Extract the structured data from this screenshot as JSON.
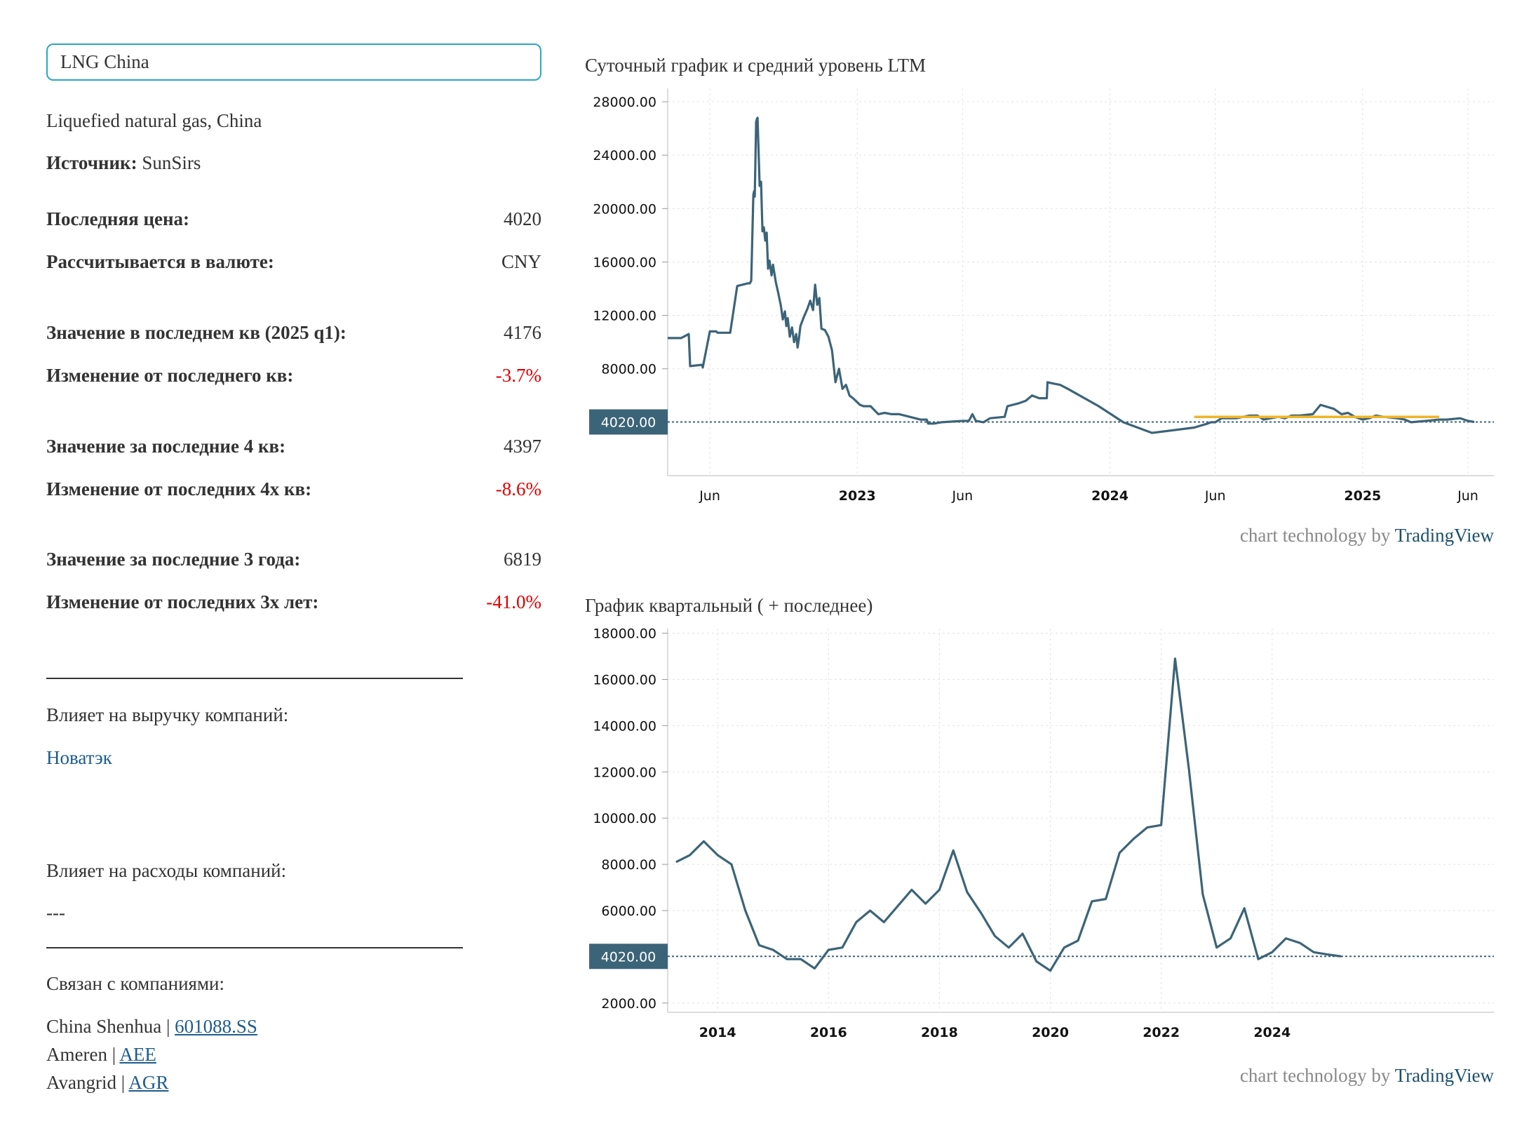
{
  "search": {
    "value": "LNG China"
  },
  "info": {
    "description": "Liquefied natural gas, China",
    "source_label": "Источник:",
    "source_value": "SunSirs"
  },
  "stats": [
    {
      "label": "Последняя цена:",
      "value": "4020",
      "negative": false
    },
    {
      "label": "Рассчитывается в валюте:",
      "value": "CNY",
      "negative": false
    },
    {
      "label": "Значение в последнем кв (2025 q1):",
      "value": "4176",
      "negative": false
    },
    {
      "label": "Изменение от последнего кв:",
      "value": "-3.7%",
      "negative": true
    },
    {
      "label": "Значение за последние 4 кв:",
      "value": "4397",
      "negative": false
    },
    {
      "label": "Изменение от последних 4х кв:",
      "value": "-8.6%",
      "negative": true
    },
    {
      "label": "Значение за последние 3 года:",
      "value": "6819",
      "negative": false
    },
    {
      "label": "Изменение от последних 3х лет:",
      "value": "-41.0%",
      "negative": true
    }
  ],
  "revenue": {
    "heading": "Влияет на выручку компаний:",
    "company": "Новатэк"
  },
  "expenses": {
    "heading": "Влияет на расходы компаний:",
    "value": "---"
  },
  "related": {
    "heading": "Связан с компаниями:",
    "companies": [
      {
        "name": "China Shenhua",
        "sep": " | ",
        "ticker": "601088.SS"
      },
      {
        "name": "Ameren",
        "sep": " | ",
        "ticker": "AEE"
      },
      {
        "name": "Avangrid",
        "sep": " | ",
        "ticker": "AGR"
      }
    ]
  },
  "credit": {
    "prefix": "chart technology by ",
    "brand": "TradingView"
  },
  "colors": {
    "line": "#3c6478",
    "ltm": "#f0b429",
    "badge": "#3c6478",
    "negative": "#e00000",
    "link": "#1d5c8c",
    "grid": "#e2e2e2"
  },
  "chart_data": [
    {
      "type": "line",
      "title": "Суточный график и средний уровень LTM",
      "ylim": [
        0,
        29000
      ],
      "y_ticks": [
        "28000.00",
        "24000.00",
        "20000.00",
        "16000.00",
        "12000.00",
        "8000.00",
        "4020.00"
      ],
      "x_ticks": [
        {
          "label": "Jun",
          "date": "2022-06",
          "bold": false
        },
        {
          "label": "2023",
          "date": "2023-01",
          "bold": true
        },
        {
          "label": "Jun",
          "date": "2023-06",
          "bold": false
        },
        {
          "label": "2024",
          "date": "2024-01",
          "bold": true
        },
        {
          "label": "Jun",
          "date": "2024-06",
          "bold": false
        },
        {
          "label": "2025",
          "date": "2025-01",
          "bold": true
        },
        {
          "label": "Jun",
          "date": "2025-06",
          "bold": false
        }
      ],
      "last_value": 4020,
      "grid": true,
      "series": [
        {
          "x": [
            "2022-04-01",
            "2022-04-20",
            "2022-05-01",
            "2022-05-03",
            "2022-05-20",
            "2022-05-21",
            "2022-06-01",
            "2022-06-10",
            "2022-06-12",
            "2022-06-30",
            "2022-07-10",
            "2022-07-25",
            "2022-07-26",
            "2022-07-28",
            "2022-07-29",
            "2022-07-30",
            "2022-08-03",
            "2022-08-04",
            "2022-08-05",
            "2022-08-07",
            "2022-08-08",
            "2022-08-09",
            "2022-08-12",
            "2022-08-14",
            "2022-08-16",
            "2022-08-18",
            "2022-08-20",
            "2022-08-22",
            "2022-08-24",
            "2022-08-26",
            "2022-08-29",
            "2022-09-01",
            "2022-09-05",
            "2022-09-08",
            "2022-09-12",
            "2022-09-15",
            "2022-09-18",
            "2022-09-20",
            "2022-09-22",
            "2022-09-25",
            "2022-09-28",
            "2022-10-01",
            "2022-10-04",
            "2022-10-06",
            "2022-10-08",
            "2022-10-10",
            "2022-10-15",
            "2022-10-20",
            "2022-10-24",
            "2022-10-28",
            "2022-11-01",
            "2022-11-04",
            "2022-11-07",
            "2022-11-10",
            "2022-11-15",
            "2022-11-20",
            "2022-11-25",
            "2022-11-30",
            "2022-12-05",
            "2022-12-10",
            "2022-12-15",
            "2022-12-20",
            "2022-12-25",
            "2022-12-31",
            "2023-01-05",
            "2023-01-10",
            "2023-01-20",
            "2023-02-01",
            "2023-02-10",
            "2023-02-20",
            "2023-03-01",
            "2023-04-01",
            "2023-04-10",
            "2023-04-12",
            "2023-04-20",
            "2023-05-01",
            "2023-06-01",
            "2023-06-10",
            "2023-06-15",
            "2023-06-20",
            "2023-07-01",
            "2023-07-10",
            "2023-08-01",
            "2023-08-05",
            "2023-08-20",
            "2023-09-01",
            "2023-09-10",
            "2023-09-20",
            "2023-10-01",
            "2023-10-02",
            "2023-10-10",
            "2023-10-20",
            "2023-11-01",
            "2023-12-15",
            "2024-01-20",
            "2024-03-01",
            "2024-05-01",
            "2024-05-20",
            "2024-05-25",
            "2024-06-01",
            "2024-06-10",
            "2024-07-01",
            "2024-07-20",
            "2024-08-01",
            "2024-08-10",
            "2024-08-20",
            "2024-09-01",
            "2024-09-10",
            "2024-09-20",
            "2024-10-01",
            "2024-10-20",
            "2024-11-01",
            "2024-11-20",
            "2024-12-01",
            "2024-12-10",
            "2024-12-20",
            "2025-01-01",
            "2025-01-10",
            "2025-01-20",
            "2025-02-01",
            "2025-02-20",
            "2025-03-01",
            "2025-03-10",
            "2025-04-01",
            "2025-04-20",
            "2025-05-01",
            "2025-05-20",
            "2025-06-01",
            "2025-06-10"
          ],
          "y": [
            10300,
            10300,
            10600,
            8200,
            8300,
            8100,
            10800,
            10800,
            10700,
            10700,
            14200,
            14400,
            14400,
            14400,
            14500,
            14600,
            21000,
            21300,
            20900,
            26500,
            26700,
            26800,
            21700,
            22000,
            18300,
            18600,
            17600,
            18200,
            15500,
            16100,
            15000,
            15800,
            14500,
            13800,
            12800,
            11700,
            12300,
            11200,
            11800,
            10400,
            11100,
            10000,
            10600,
            9600,
            10300,
            11200,
            11900,
            12500,
            13100,
            12400,
            14300,
            12800,
            13300,
            11000,
            10900,
            10400,
            9400,
            7000,
            8000,
            6500,
            6800,
            6000,
            5800,
            5500,
            5300,
            5200,
            5200,
            4600,
            4700,
            4600,
            4600,
            4200,
            4200,
            3900,
            3900,
            4000,
            4100,
            4100,
            4600,
            4100,
            4000,
            4300,
            4400,
            5200,
            5400,
            5600,
            6000,
            5800,
            5800,
            7000,
            6900,
            6800,
            6500,
            5200,
            4000,
            3200,
            3600,
            3900,
            4000,
            4000,
            4300,
            4300,
            4500,
            4500,
            4200,
            4300,
            4400,
            4300,
            4500,
            4500,
            4600,
            5300,
            5000,
            4600,
            4700,
            4400,
            4200,
            4300,
            4500,
            4400,
            4300,
            4200,
            4000,
            4100,
            4200,
            4200,
            4300,
            4100,
            4020
          ]
        }
      ],
      "ltm": {
        "x": [
          "2024-05-01",
          "2025-04-20"
        ],
        "y": [
          4397,
          4397
        ]
      }
    },
    {
      "type": "line",
      "title": "График квартальный ( + последнее)",
      "ylim": [
        1600,
        18200
      ],
      "y_ticks": [
        "18000.00",
        "16000.00",
        "14000.00",
        "12000.00",
        "10000.00",
        "8000.00",
        "6000.00",
        "4020.00",
        "2000.00"
      ],
      "x_ticks": [
        "2014",
        "2016",
        "2018",
        "2020",
        "2022",
        "2024"
      ],
      "last_value": 4020,
      "grid": true,
      "series": [
        {
          "x": [
            2013.25,
            2013.5,
            2013.75,
            2014,
            2014.25,
            2014.5,
            2014.75,
            2015,
            2015.25,
            2015.5,
            2015.75,
            2016,
            2016.25,
            2016.5,
            2016.75,
            2017,
            2017.25,
            2017.5,
            2017.75,
            2018,
            2018.25,
            2018.5,
            2018.75,
            2019,
            2019.25,
            2019.5,
            2019.75,
            2020,
            2020.25,
            2020.5,
            2020.75,
            2021,
            2021.25,
            2021.5,
            2021.75,
            2022,
            2022.25,
            2022.5,
            2022.75,
            2023,
            2023.25,
            2023.5,
            2023.75,
            2024,
            2024.25,
            2024.5,
            2024.75,
            2025,
            2025.25
          ],
          "y": [
            8100,
            8400,
            9000,
            8400,
            8000,
            6000,
            4500,
            4300,
            3900,
            3900,
            3500,
            4300,
            4400,
            5500,
            6000,
            5500,
            6200,
            6900,
            6300,
            6900,
            8600,
            6800,
            5900,
            4900,
            4400,
            5000,
            3800,
            3400,
            4400,
            4700,
            6400,
            6500,
            8500,
            9100,
            9600,
            9700,
            16900,
            12100,
            6700,
            4400,
            4800,
            6100,
            3900,
            4200,
            4800,
            4600,
            4200,
            4100,
            4020
          ]
        }
      ]
    }
  ]
}
